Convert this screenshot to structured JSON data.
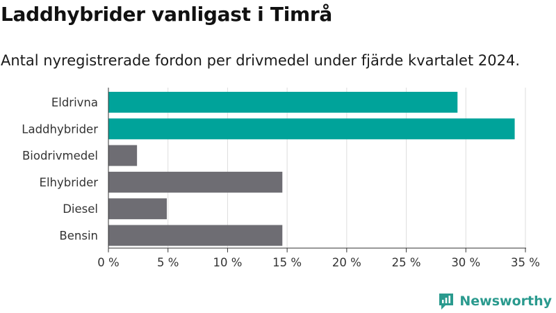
{
  "header": {
    "title": "Laddhybrider vanligast i Timrå",
    "subtitle": "Antal nyregistrerade fordon per drivmedel under fjärde kvartalet 2024."
  },
  "brand": {
    "name": "Newsworthy",
    "icon": "newsworthy-logo-icon"
  },
  "colors": {
    "highlight": "#00a39a",
    "default": "#6e6d73",
    "grid": "#dddddd",
    "axis": "#333333"
  },
  "chart_data": {
    "type": "bar",
    "orientation": "horizontal",
    "categories": [
      "Eldrivna",
      "Laddhybrider",
      "Biodrivmedel",
      "Elhybrider",
      "Diesel",
      "Bensin"
    ],
    "values": [
      29.3,
      34.1,
      2.4,
      14.6,
      4.9,
      14.6
    ],
    "highlighted": [
      true,
      true,
      false,
      false,
      false,
      false
    ],
    "title": "Laddhybrider vanligast i Timrå",
    "subtitle": "Antal nyregistrerade fordon per drivmedel under fjärde kvartalet 2024.",
    "xlabel": "",
    "ylabel": "",
    "xlim": [
      0,
      35
    ],
    "xticks": [
      0,
      5,
      10,
      15,
      20,
      25,
      30,
      35
    ],
    "xtick_labels": [
      "0 %",
      "5 %",
      "10 %",
      "15 %",
      "20 %",
      "25 %",
      "30 %",
      "35 %"
    ],
    "grid": true,
    "legend": "none"
  }
}
